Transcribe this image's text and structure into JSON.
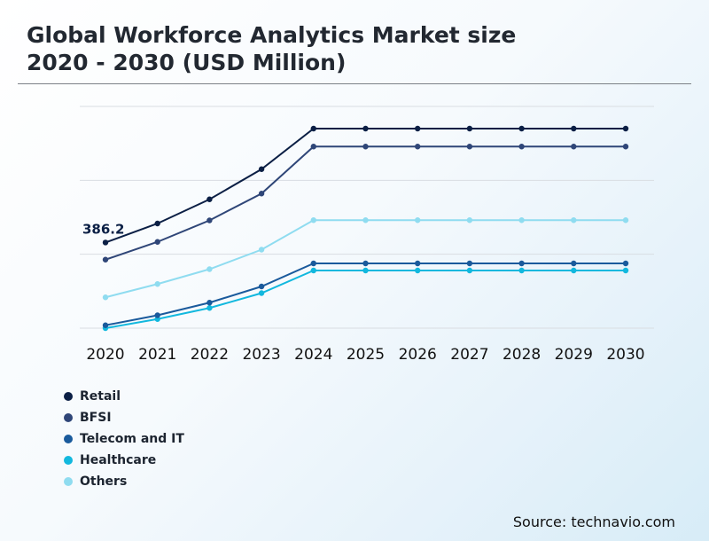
{
  "header": {
    "title_line1": "Global Workforce Analytics Market size",
    "title_line2": "2020 - 2030 (USD Million)"
  },
  "source": "Source: technavio.com",
  "chart_data": {
    "type": "line",
    "title": "Global Workforce Analytics Market size 2020 - 2030 (USD Million)",
    "xlabel": "",
    "ylabel": "",
    "grid": true,
    "legend_position": "bottom-left",
    "categories": [
      "2020",
      "2021",
      "2022",
      "2023",
      "2024",
      "2025",
      "2026",
      "2027",
      "2028",
      "2029",
      "2030"
    ],
    "ylim": [
      0,
      1000
    ],
    "series": [
      {
        "name": "Retail",
        "color": "#0b1f45",
        "values": [
          386.2,
          472,
          581,
          717,
          900,
          900,
          900,
          900,
          900,
          900,
          900
        ]
      },
      {
        "name": "BFSI",
        "color": "#2f4678",
        "values": [
          309,
          389,
          486,
          607,
          819,
          819,
          819,
          819,
          819,
          819,
          819
        ]
      },
      {
        "name": "Telecom and IT",
        "color": "#1a5a9c",
        "values": [
          13,
          58,
          115,
          188,
          292,
          292,
          292,
          292,
          292,
          292,
          292
        ]
      },
      {
        "name": "Healthcare",
        "color": "#12b8de",
        "values": [
          0,
          41,
          91,
          158,
          260,
          260,
          260,
          260,
          260,
          260,
          260
        ]
      },
      {
        "name": "Others",
        "color": "#8fdcf0",
        "values": [
          139,
          199,
          266,
          354,
          487,
          487,
          487,
          487,
          487,
          487,
          487
        ]
      }
    ],
    "annotations": [
      {
        "text": "386.2",
        "series": "Retail",
        "category": "2020"
      }
    ]
  }
}
